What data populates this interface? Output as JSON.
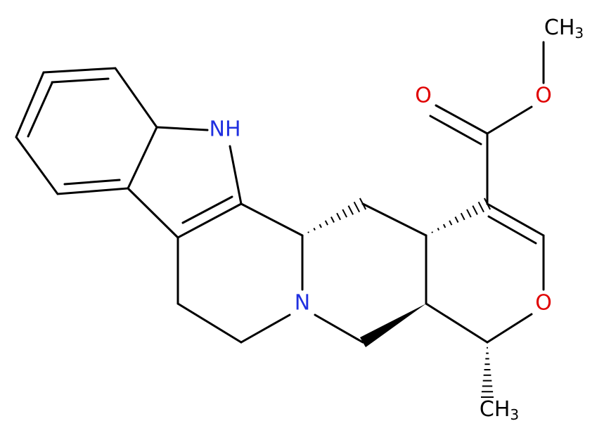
{
  "atoms": [
    {
      "text": "CH",
      "sub": "3"
    },
    {
      "text": "O"
    },
    {
      "text": "O"
    },
    {
      "text": "NH"
    },
    {
      "text": "N"
    },
    {
      "text": "O"
    },
    {
      "text": "CH",
      "sub": "3"
    }
  ]
}
